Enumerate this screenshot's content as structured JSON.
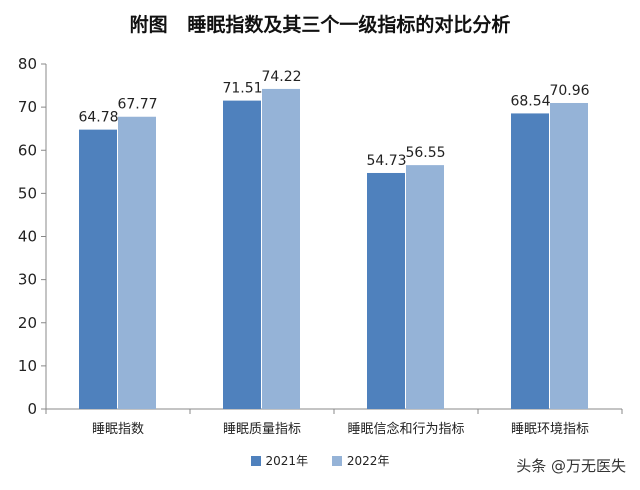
{
  "watermark": "头条 @万无医失",
  "chart_data": {
    "type": "bar",
    "title": "附图   睡眠指数及其三个一级指标的对比分析",
    "categories": [
      "睡眠指数",
      "睡眠质量指标",
      "睡眠信念和行为指标",
      "睡眠环境指标"
    ],
    "series": [
      {
        "name": "2021年",
        "color": "#4f81bd",
        "values": [
          64.78,
          71.51,
          54.73,
          68.54
        ]
      },
      {
        "name": "2022年",
        "color": "#95b3d7",
        "values": [
          67.77,
          74.22,
          56.55,
          70.96
        ]
      }
    ],
    "value_labels": [
      [
        "64.78",
        "71.51",
        "54.73",
        "68.54"
      ],
      [
        "67.77",
        "74.22",
        "56.55",
        "70.96"
      ]
    ],
    "ylim": [
      0,
      80
    ],
    "yticks": [
      0,
      10,
      20,
      30,
      40,
      50,
      60,
      70,
      80
    ],
    "grid": false,
    "legend": "bottom"
  }
}
